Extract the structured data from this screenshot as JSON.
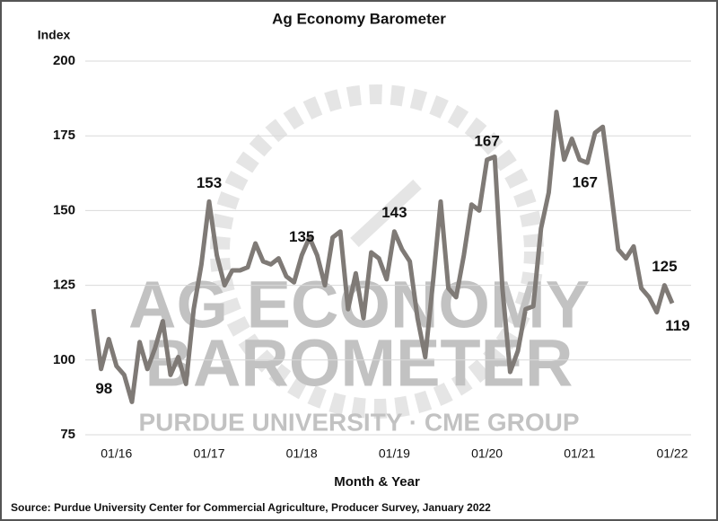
{
  "chart_data": {
    "type": "line",
    "title": "Ag Economy Barometer",
    "y_label": "Index",
    "x_label": "Month & Year",
    "source": "Source: Purdue University Center for Commercial Agriculture, Producer Survey, January 2022",
    "watermark": [
      "AG ECONOMY",
      "BAROMETER",
      "PURDUE UNIVERSITY · CME GROUP"
    ],
    "categories": [
      null,
      null,
      null,
      "01/16",
      null,
      null,
      null,
      null,
      null,
      null,
      null,
      null,
      null,
      null,
      null,
      "01/17",
      null,
      null,
      null,
      null,
      null,
      null,
      null,
      null,
      null,
      null,
      null,
      "01/18",
      null,
      null,
      null,
      null,
      null,
      null,
      null,
      null,
      null,
      null,
      null,
      "01/19",
      null,
      null,
      null,
      null,
      null,
      null,
      null,
      null,
      null,
      null,
      null,
      "01/20",
      null,
      null,
      null,
      null,
      null,
      null,
      null,
      null,
      null,
      null,
      null,
      "01/21",
      null,
      null,
      null,
      null,
      null,
      null,
      null,
      null,
      null,
      null,
      null,
      "01/22"
    ],
    "values": [
      117,
      97,
      107,
      98,
      95,
      86,
      106,
      97,
      104,
      113,
      95,
      101,
      92,
      117,
      132,
      153,
      135,
      125,
      130,
      130,
      131,
      139,
      133,
      132,
      134,
      128,
      126,
      135,
      141,
      135,
      125,
      141,
      143,
      117,
      129,
      114,
      136,
      134,
      127,
      143,
      137,
      133,
      114,
      101,
      126,
      153,
      124,
      121,
      135,
      152,
      150,
      167,
      168,
      124,
      96,
      103,
      117,
      118,
      144,
      156,
      183,
      167,
      174,
      167,
      166,
      176,
      178,
      158,
      137,
      134,
      138,
      124,
      121,
      116,
      125,
      119
    ],
    "value_labels": [
      null,
      null,
      null,
      98,
      null,
      null,
      null,
      null,
      null,
      null,
      null,
      null,
      null,
      null,
      null,
      153,
      null,
      null,
      null,
      null,
      null,
      null,
      null,
      null,
      null,
      null,
      null,
      135,
      null,
      null,
      null,
      null,
      null,
      null,
      null,
      null,
      null,
      null,
      null,
      143,
      null,
      null,
      null,
      null,
      null,
      null,
      null,
      null,
      null,
      null,
      null,
      167,
      null,
      null,
      null,
      null,
      null,
      null,
      null,
      null,
      null,
      null,
      null,
      167,
      null,
      null,
      null,
      null,
      null,
      null,
      null,
      null,
      null,
      null,
      125,
      119
    ],
    "color": "#7f7a76",
    "ylim": [
      75,
      200
    ],
    "yticks": [
      75,
      100,
      125,
      150,
      175,
      200
    ],
    "grid": true
  }
}
